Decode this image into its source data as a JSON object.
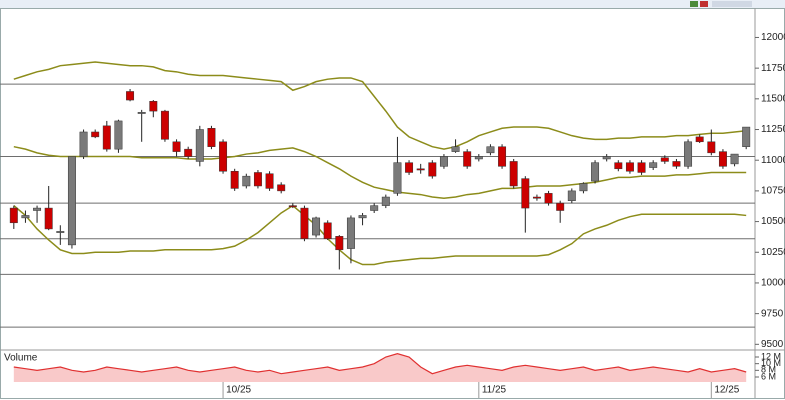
{
  "chart_data": [
    {
      "type": "candlestick",
      "categories": [
        null,
        null,
        null,
        null,
        null,
        null,
        null,
        null,
        null,
        null,
        null,
        null,
        null,
        null,
        null,
        null,
        null,
        null,
        "10/25",
        null,
        null,
        null,
        null,
        null,
        null,
        null,
        null,
        null,
        null,
        null,
        null,
        null,
        null,
        null,
        null,
        null,
        null,
        null,
        null,
        null,
        "11/25",
        null,
        null,
        null,
        null,
        null,
        null,
        null,
        null,
        null,
        null,
        null,
        null,
        null,
        null,
        null,
        null,
        null,
        null,
        null,
        "12/25",
        null,
        null,
        null
      ],
      "open": [
        10610,
        10530,
        10590,
        10610,
        10410,
        10310,
        11030,
        11230,
        11280,
        11090,
        11560,
        11380,
        11480,
        11400,
        11150,
        11090,
        10990,
        11260,
        11150,
        10910,
        10790,
        10900,
        10890,
        10800,
        10630,
        10610,
        10390,
        10490,
        10380,
        10280,
        10530,
        10590,
        10630,
        10730,
        10980,
        10930,
        10980,
        10950,
        11070,
        11070,
        11010,
        11060,
        11110,
        10990,
        10850,
        10700,
        10730,
        10650,
        10670,
        10750,
        10830,
        11010,
        10980,
        10980,
        10980,
        10940,
        11020,
        10990,
        10950,
        11190,
        11150,
        11070,
        10970,
        11110
      ],
      "high": [
        10630,
        10590,
        10630,
        10790,
        10470,
        11030,
        11250,
        11250,
        11320,
        11330,
        11580,
        11410,
        11490,
        11410,
        11170,
        11110,
        11280,
        11280,
        11170,
        10930,
        10890,
        10920,
        10910,
        10820,
        10650,
        10630,
        10540,
        10510,
        10390,
        10550,
        10570,
        10650,
        10720,
        11190,
        11000,
        10970,
        11000,
        11050,
        11170,
        11090,
        11050,
        11130,
        11130,
        11010,
        10870,
        10720,
        10750,
        10670,
        10770,
        10820,
        11000,
        11050,
        11000,
        11000,
        11000,
        11000,
        11040,
        11010,
        11170,
        11210,
        11250,
        11090,
        11050,
        11270
      ],
      "low": [
        10440,
        10490,
        10490,
        10430,
        10310,
        10280,
        11010,
        11180,
        11070,
        11060,
        11480,
        11150,
        11350,
        11150,
        11030,
        11010,
        10950,
        11090,
        10890,
        10750,
        10770,
        10770,
        10750,
        10730,
        10610,
        10340,
        10370,
        10350,
        10110,
        10160,
        10470,
        10570,
        10610,
        10710,
        10880,
        10890,
        10850,
        10930,
        11060,
        10930,
        10990,
        11040,
        10930,
        10770,
        10410,
        10670,
        10630,
        10490,
        10650,
        10730,
        10810,
        10990,
        10910,
        10890,
        10880,
        10920,
        10970,
        10930,
        10930,
        11140,
        11040,
        10930,
        10950,
        11090
      ],
      "close": [
        10490,
        10550,
        10610,
        10440,
        10420,
        11030,
        11230,
        11190,
        11090,
        11320,
        11490,
        11390,
        11400,
        11170,
        11070,
        11030,
        11250,
        11110,
        10910,
        10770,
        10870,
        10790,
        10770,
        10750,
        10620,
        10360,
        10530,
        10360,
        10270,
        10530,
        10550,
        10630,
        10700,
        10980,
        10900,
        10920,
        10870,
        11030,
        11110,
        10950,
        11030,
        11110,
        10950,
        10790,
        10610,
        10690,
        10650,
        10590,
        10750,
        10810,
        10980,
        11030,
        10930,
        10910,
        10900,
        10980,
        10990,
        10950,
        11150,
        11150,
        11060,
        10950,
        11050,
        11270
      ],
      "bands": {
        "upper": [
          11660,
          11690,
          11720,
          11740,
          11770,
          11780,
          11790,
          11800,
          11790,
          11780,
          11770,
          11770,
          11760,
          11730,
          11720,
          11700,
          11690,
          11690,
          11690,
          11680,
          11670,
          11660,
          11650,
          11640,
          11570,
          11600,
          11640,
          11660,
          11670,
          11670,
          11640,
          11520,
          11400,
          11270,
          11190,
          11150,
          11110,
          11090,
          11110,
          11150,
          11200,
          11230,
          11260,
          11270,
          11270,
          11270,
          11260,
          11230,
          11200,
          11180,
          11170,
          11170,
          11180,
          11180,
          11190,
          11190,
          11190,
          11200,
          11200,
          11210,
          11220,
          11220,
          11230,
          11240
        ],
        "middle": [
          11110,
          11090,
          11060,
          11040,
          11030,
          11030,
          11030,
          11030,
          11030,
          11030,
          11030,
          11020,
          11020,
          11020,
          11020,
          11010,
          11010,
          11010,
          11020,
          11030,
          11050,
          11060,
          11080,
          11090,
          11100,
          11070,
          11030,
          10980,
          10930,
          10870,
          10820,
          10780,
          10760,
          10740,
          10730,
          10720,
          10700,
          10690,
          10700,
          10720,
          10730,
          10750,
          10770,
          10770,
          10780,
          10790,
          10790,
          10790,
          10800,
          10810,
          10820,
          10840,
          10860,
          10860,
          10870,
          10870,
          10870,
          10880,
          10880,
          10890,
          10900,
          10900,
          10900,
          10900
        ],
        "lower": [
          10630,
          10550,
          10440,
          10350,
          10270,
          10240,
          10240,
          10250,
          10250,
          10250,
          10260,
          10260,
          10260,
          10270,
          10270,
          10270,
          10270,
          10270,
          10280,
          10300,
          10350,
          10410,
          10490,
          10570,
          10630,
          10550,
          10470,
          10360,
          10270,
          10190,
          10150,
          10150,
          10170,
          10180,
          10190,
          10200,
          10200,
          10210,
          10220,
          10220,
          10220,
          10220,
          10220,
          10220,
          10220,
          10220,
          10230,
          10270,
          10320,
          10400,
          10440,
          10470,
          10510,
          10540,
          10560,
          10560,
          10560,
          10560,
          10560,
          10560,
          10560,
          10560,
          10560,
          10550
        ]
      },
      "levels": [
        11620,
        11030,
        10650,
        10360,
        10070,
        9640
      ],
      "up_color": "#7a7a7a",
      "down_color": "#cc0000",
      "band_color": "#8c8c1a",
      "level_color": "#6e6e6e",
      "ylim": [
        9470,
        12240
      ],
      "yticks": [
        9500,
        9750,
        10000,
        10250,
        10500,
        10750,
        11000,
        11250,
        11500,
        11750,
        12000
      ]
    },
    {
      "type": "area",
      "title": "Volume",
      "values": [
        9,
        8.5,
        8,
        8.5,
        9,
        8,
        7.5,
        8,
        9,
        8.5,
        8,
        7.5,
        8,
        8.5,
        9,
        8,
        7.5,
        8,
        8.5,
        9,
        8,
        7.5,
        8,
        7,
        7.5,
        8,
        8.5,
        9,
        8,
        8.5,
        9,
        10,
        12,
        13,
        12,
        9,
        7,
        8,
        9,
        9.5,
        9,
        8.5,
        8,
        9,
        9.5,
        9,
        8.5,
        8,
        8.5,
        9,
        8,
        8.5,
        9,
        8,
        8.5,
        9,
        8.5,
        8,
        7.5,
        8.5,
        7.5,
        8,
        8.5,
        7.5
      ],
      "color": "#e03030",
      "fill": "#f9c9c9",
      "ylim": [
        4.5,
        13.5
      ],
      "yticks": [
        {
          "value": 6,
          "label": "6 M"
        },
        {
          "value": 8,
          "label": "8 M"
        },
        {
          "value": 10,
          "label": "10 M"
        },
        {
          "value": 12,
          "label": "12 M"
        }
      ]
    }
  ]
}
